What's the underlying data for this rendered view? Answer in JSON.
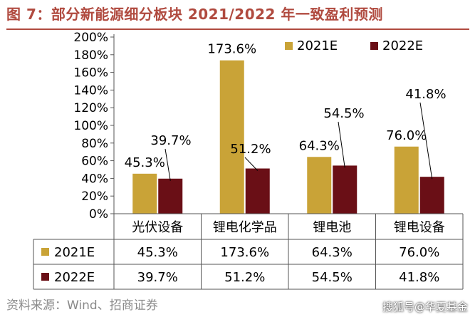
{
  "header": {
    "title": "图 7：部分新能源细分板块 2021/2022 年一致盈利预测"
  },
  "footer": {
    "source": "资料来源：Wind、招商证券",
    "watermark": "搜狐号@华夏基金"
  },
  "colors": {
    "title": "#b04a3f",
    "series_2021": "#c9a337",
    "series_2022": "#6a0f16"
  },
  "chart_data": {
    "type": "bar",
    "categories": [
      "光伏设备",
      "锂电化学品",
      "锂电池",
      "锂电设备"
    ],
    "series": [
      {
        "name": "2021E",
        "values": [
          45.3,
          173.6,
          64.3,
          76.0
        ],
        "labels": [
          "45.3%",
          "173.6%",
          "64.3%",
          "76.0%"
        ]
      },
      {
        "name": "2022E",
        "values": [
          39.7,
          51.2,
          54.5,
          41.8
        ],
        "labels": [
          "39.7%",
          "51.2%",
          "54.5%",
          "41.8%"
        ]
      }
    ],
    "y_ticks": [
      "0%",
      "20%",
      "40%",
      "60%",
      "80%",
      "100%",
      "120%",
      "140%",
      "160%",
      "180%",
      "200%"
    ],
    "ylim": [
      0,
      200
    ],
    "legend_position": "top-right",
    "data_table": true
  }
}
